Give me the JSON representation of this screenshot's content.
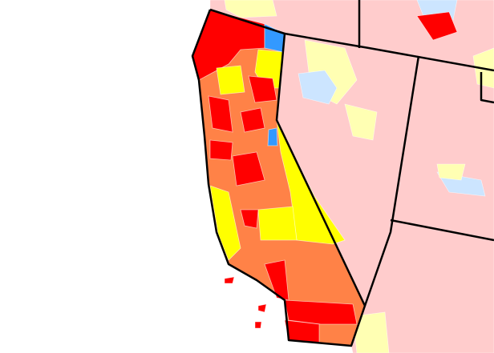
{
  "map": {
    "fills": [
      "#ff0000",
      "#ff8247",
      "#ffff00",
      "#3399ff",
      "#ffcccc",
      "#ffffb3",
      "#cce5ff",
      "#ffffff"
    ]
  }
}
